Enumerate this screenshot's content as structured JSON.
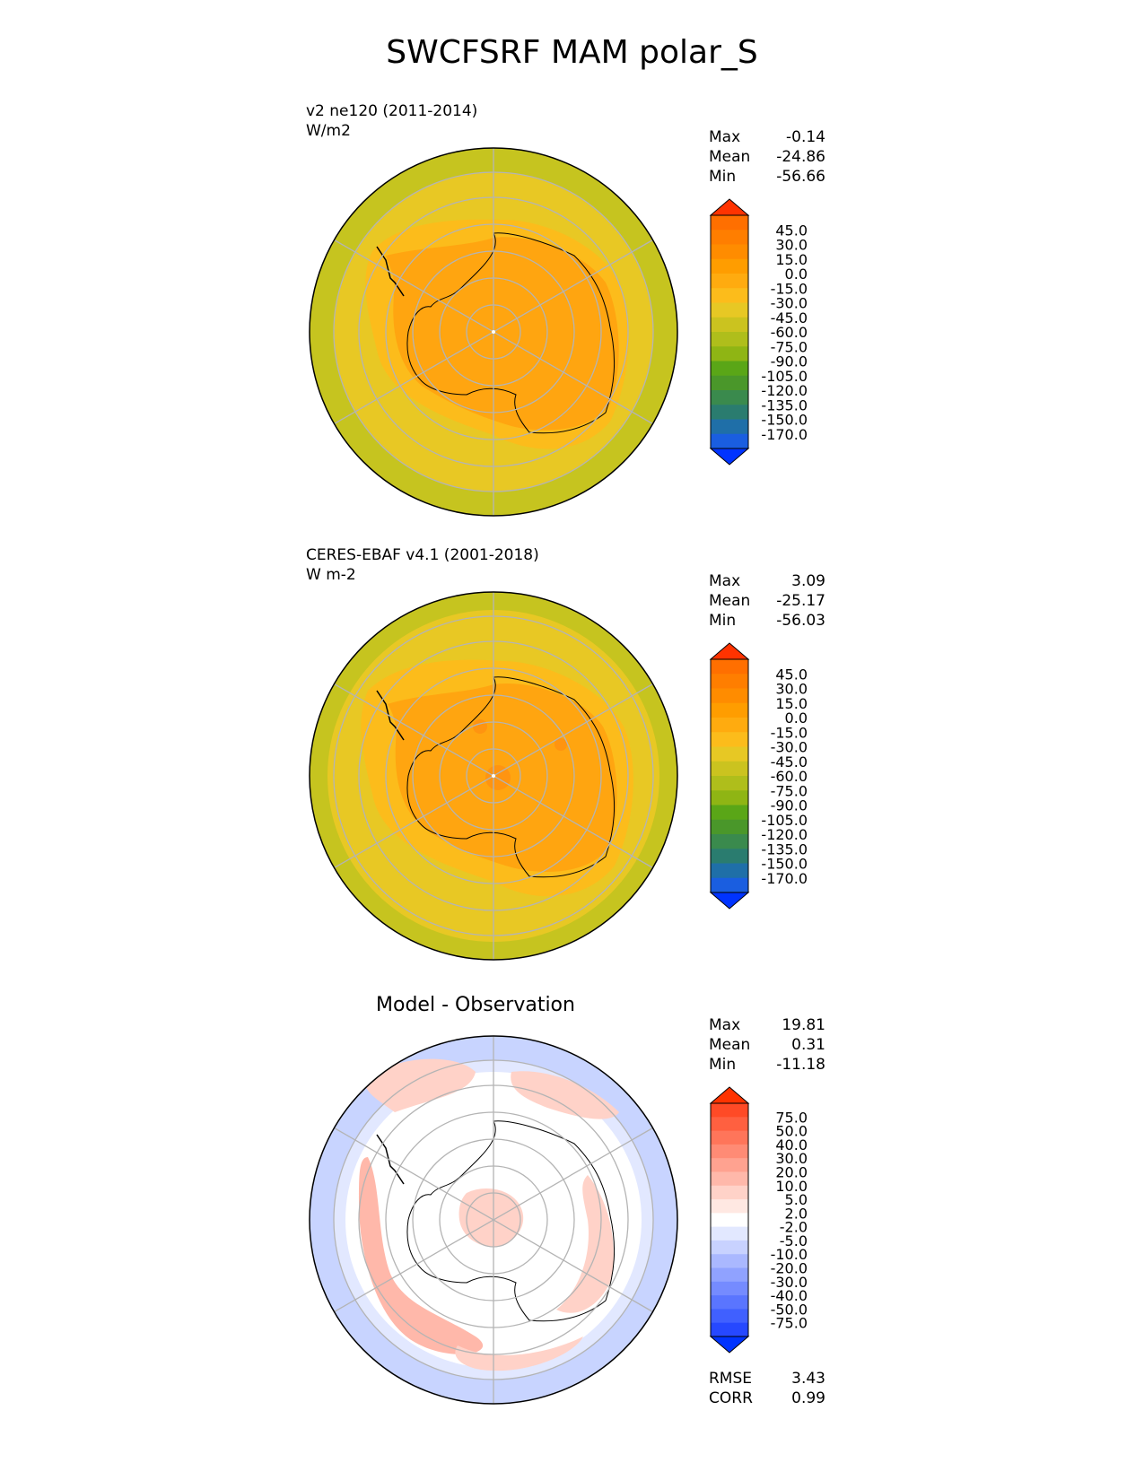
{
  "figure": {
    "title": "SWCFSRF MAM polar_S",
    "panels": [
      {
        "id": "test",
        "title_line1": "v2 ne120 (2011-2014)",
        "title_line2": "W/m2",
        "stats": {
          "max_label": "Max",
          "max": "-0.14",
          "mean_label": "Mean",
          "mean": "-24.86",
          "min_label": "Min",
          "min": "-56.66"
        },
        "colorbar": {
          "labels": [
            "45.0",
            "30.0",
            "15.0",
            "0.0",
            "-15.0",
            "-30.0",
            "-45.0",
            "-60.0",
            "-75.0",
            "-90.0",
            "-105.0",
            "-120.0",
            "-135.0",
            "-150.0",
            "-170.0"
          ],
          "colors": [
            "#ff6f00",
            "#ff7e00",
            "#ff8c00",
            "#ff9d00",
            "#ffab0f",
            "#fcbc1b",
            "#e7c824",
            "#cbc31f",
            "#afbe1b",
            "#8fb514",
            "#5aa617",
            "#4a972a",
            "#3a8a4d",
            "#2a7c6f",
            "#1f6fa8",
            "#1a5ee0"
          ],
          "top_color": "#ff3300",
          "bottom_color": "#0033ff"
        },
        "colors": {
          "ocean_outer": "#c6c41f",
          "ocean": "#e8c824",
          "shelf": "#fcbc1b",
          "land": "#ffa510"
        }
      },
      {
        "id": "reference",
        "title_line1": "CERES-EBAF v4.1 (2001-2018)",
        "title_line2": "W m-2",
        "stats": {
          "max_label": "Max",
          "max": "3.09",
          "mean_label": "Mean",
          "mean": "-25.17",
          "min_label": "Min",
          "min": "-56.03"
        },
        "colorbar": {
          "labels": [
            "45.0",
            "30.0",
            "15.0",
            "0.0",
            "-15.0",
            "-30.0",
            "-45.0",
            "-60.0",
            "-75.0",
            "-90.0",
            "-105.0",
            "-120.0",
            "-135.0",
            "-150.0",
            "-170.0"
          ],
          "colors": [
            "#ff6f00",
            "#ff7e00",
            "#ff8c00",
            "#ff9d00",
            "#ffab0f",
            "#fcbc1b",
            "#e7c824",
            "#cbc31f",
            "#afbe1b",
            "#8fb514",
            "#5aa617",
            "#4a972a",
            "#3a8a4d",
            "#2a7c6f",
            "#1f6fa8",
            "#1a5ee0"
          ],
          "top_color": "#ff3300",
          "bottom_color": "#0033ff"
        },
        "colors": {
          "ocean_outer": "#c6c41f",
          "ocean": "#e8c824",
          "shelf": "#fcbc1b",
          "land": "#ffa510",
          "patch": "#ff9410"
        }
      },
      {
        "id": "difference",
        "title": "Model - Observation",
        "stats": {
          "max_label": "Max",
          "max": "19.81",
          "mean_label": "Mean",
          "mean": "0.31",
          "min_label": "Min",
          "min": "-11.18"
        },
        "colorbar": {
          "labels": [
            "75.0",
            "50.0",
            "40.0",
            "30.0",
            "20.0",
            "10.0",
            "5.0",
            "2.0",
            "-2.0",
            "-5.0",
            "-10.0",
            "-20.0",
            "-30.0",
            "-40.0",
            "-50.0",
            "-75.0"
          ],
          "colors": [
            "#ff4a26",
            "#ff6040",
            "#ff755a",
            "#ff8b75",
            "#ffa290",
            "#ffb8aa",
            "#ffd2c8",
            "#ffe8e2",
            "#ffffff",
            "#e2e8ff",
            "#c8d2ff",
            "#aab8ff",
            "#90a2ff",
            "#758bff",
            "#5a75ff",
            "#4060ff",
            "#2648ff"
          ],
          "top_color": "#ff3300",
          "bottom_color": "#0033ff"
        },
        "summary": {
          "rmse_label": "RMSE",
          "rmse": "3.43",
          "corr_label": "CORR",
          "corr": "0.99"
        },
        "colors": {
          "neg": "#c8d4ff",
          "neg_light": "#e2e8ff",
          "pos": "#ffd2c8",
          "pos_strong": "#ffb8aa",
          "neutral": "#ffffff"
        }
      }
    ]
  }
}
